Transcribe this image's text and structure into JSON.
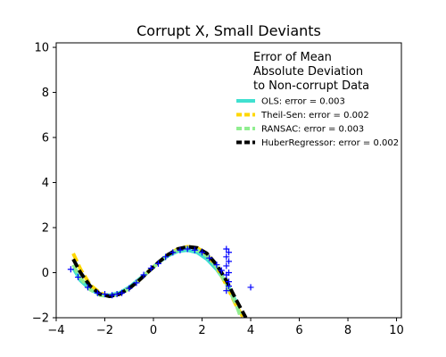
{
  "chart_data": {
    "type": "line",
    "title": "Corrupt X, Small Deviants",
    "xlim": [
      -4,
      10.2
    ],
    "ylim": [
      -2,
      10.2
    ],
    "xticks": [
      -4,
      -2,
      0,
      2,
      4,
      6,
      8,
      10
    ],
    "yticks": [
      -2,
      0,
      2,
      4,
      6,
      8,
      10
    ],
    "grid": false,
    "legend": {
      "placement": "top-right",
      "title_lines": [
        "Error of Mean",
        "Absolute Deviation",
        "to Non-corrupt Data"
      ]
    },
    "series": [
      {
        "name": "OLS: error = 0.003",
        "color": "#40e0d0",
        "dash": "solid",
        "x": [
          -3.3,
          -3.0,
          -2.6,
          -2.2,
          -1.8,
          -1.4,
          -1.0,
          -0.6,
          -0.2,
          0.2,
          0.6,
          1.0,
          1.4,
          1.8,
          2.2,
          2.6,
          3.0,
          3.4
        ],
        "y": [
          0.2,
          -0.35,
          -0.75,
          -0.95,
          -1.0,
          -0.9,
          -0.65,
          -0.3,
          0.05,
          0.45,
          0.75,
          0.95,
          1.0,
          0.9,
          0.6,
          0.15,
          -0.45,
          -1.3
        ]
      },
      {
        "name": "Theil-Sen: error = 0.002",
        "color": "#ffd700",
        "dash": "dashed",
        "x": [
          -3.3,
          -3.0,
          -2.6,
          -2.2,
          -1.8,
          -1.4,
          -1.0,
          -0.6,
          -0.2,
          0.2,
          0.6,
          1.0,
          1.4,
          1.8,
          2.2,
          2.6,
          3.0,
          3.4,
          3.7
        ],
        "y": [
          0.85,
          0.15,
          -0.55,
          -0.9,
          -1.05,
          -0.95,
          -0.7,
          -0.35,
          0.05,
          0.45,
          0.8,
          1.05,
          1.15,
          1.1,
          0.8,
          0.25,
          -0.55,
          -1.45,
          -2.0
        ]
      },
      {
        "name": "RANSAC: error = 0.003",
        "color": "#90ee90",
        "dash": "dashed",
        "x": [
          -3.3,
          -3.0,
          -2.6,
          -2.2,
          -1.8,
          -1.4,
          -1.0,
          -0.6,
          -0.2,
          0.2,
          0.6,
          1.0,
          1.4,
          1.8,
          2.2,
          2.6,
          3.0,
          3.4,
          3.6
        ],
        "y": [
          0.35,
          -0.25,
          -0.75,
          -1.0,
          -1.05,
          -0.95,
          -0.7,
          -0.35,
          0.05,
          0.45,
          0.8,
          1.0,
          1.1,
          1.0,
          0.75,
          0.25,
          -0.5,
          -1.4,
          -2.0
        ]
      },
      {
        "name": "HuberRegressor: error = 0.002",
        "color": "#000000",
        "dash": "dashed",
        "x": [
          -3.3,
          -3.0,
          -2.6,
          -2.2,
          -1.8,
          -1.4,
          -1.0,
          -0.6,
          -0.2,
          0.2,
          0.6,
          1.0,
          1.4,
          1.8,
          2.2,
          2.6,
          3.0,
          3.4,
          3.8
        ],
        "y": [
          0.6,
          0.0,
          -0.6,
          -0.95,
          -1.05,
          -0.95,
          -0.7,
          -0.35,
          0.05,
          0.45,
          0.8,
          1.05,
          1.15,
          1.1,
          0.85,
          0.35,
          -0.35,
          -1.2,
          -2.0
        ]
      }
    ],
    "scatter": {
      "color": "#0000ff",
      "marker": "+",
      "x": [
        -3.4,
        -3.1,
        -2.7,
        -2.3,
        -2.0,
        -1.7,
        -1.5,
        -1.3,
        -1.0,
        -0.7,
        -0.4,
        -0.1,
        0.2,
        0.5,
        0.8,
        1.1,
        1.4,
        1.7,
        2.0,
        2.3,
        2.6,
        2.8,
        3.0,
        3.0,
        3.0,
        3.0,
        3.1,
        3.1,
        3.1,
        3.1,
        3.0,
        3.1,
        4.0
      ],
      "y": [
        0.15,
        -0.2,
        -0.65,
        -0.9,
        -0.95,
        -1.0,
        -0.95,
        -0.9,
        -0.7,
        -0.45,
        -0.1,
        0.2,
        0.4,
        0.7,
        0.9,
        1.0,
        1.05,
        1.0,
        0.9,
        0.65,
        0.35,
        0.1,
        1.05,
        0.7,
        0.3,
        -0.1,
        0.9,
        0.5,
        0.0,
        -0.4,
        -0.8,
        -0.6,
        -0.65
      ]
    }
  }
}
